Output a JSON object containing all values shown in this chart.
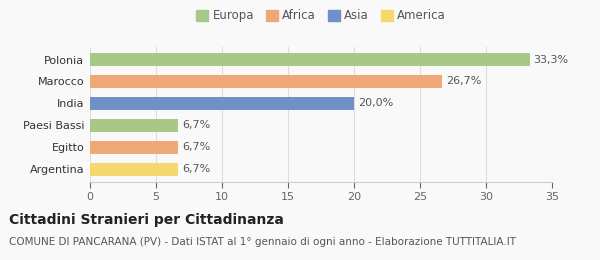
{
  "categories": [
    "Argentina",
    "Egitto",
    "Paesi Bassi",
    "India",
    "Marocco",
    "Polonia"
  ],
  "values": [
    6.7,
    6.7,
    6.7,
    20.0,
    26.7,
    33.3
  ],
  "colors": [
    "#f5d76e",
    "#f0a878",
    "#a8c888",
    "#7090c8",
    "#f0a878",
    "#a8c888"
  ],
  "labels": [
    "6,7%",
    "6,7%",
    "6,7%",
    "20,0%",
    "26,7%",
    "33,3%"
  ],
  "legend": [
    {
      "label": "Europa",
      "color": "#a8c888"
    },
    {
      "label": "Africa",
      "color": "#f0a878"
    },
    {
      "label": "Asia",
      "color": "#7090c8"
    },
    {
      "label": "America",
      "color": "#f5d76e"
    }
  ],
  "xlim": [
    0,
    35
  ],
  "xticks": [
    0,
    5,
    10,
    15,
    20,
    25,
    30,
    35
  ],
  "title": "Cittadini Stranieri per Cittadinanza",
  "subtitle": "COMUNE DI PANCARANA (PV) - Dati ISTAT al 1° gennaio di ogni anno - Elaborazione TUTTITALIA.IT",
  "background_color": "#f9f9f9",
  "title_fontsize": 10,
  "subtitle_fontsize": 7.5,
  "label_fontsize": 8,
  "tick_fontsize": 8,
  "legend_fontsize": 8.5
}
